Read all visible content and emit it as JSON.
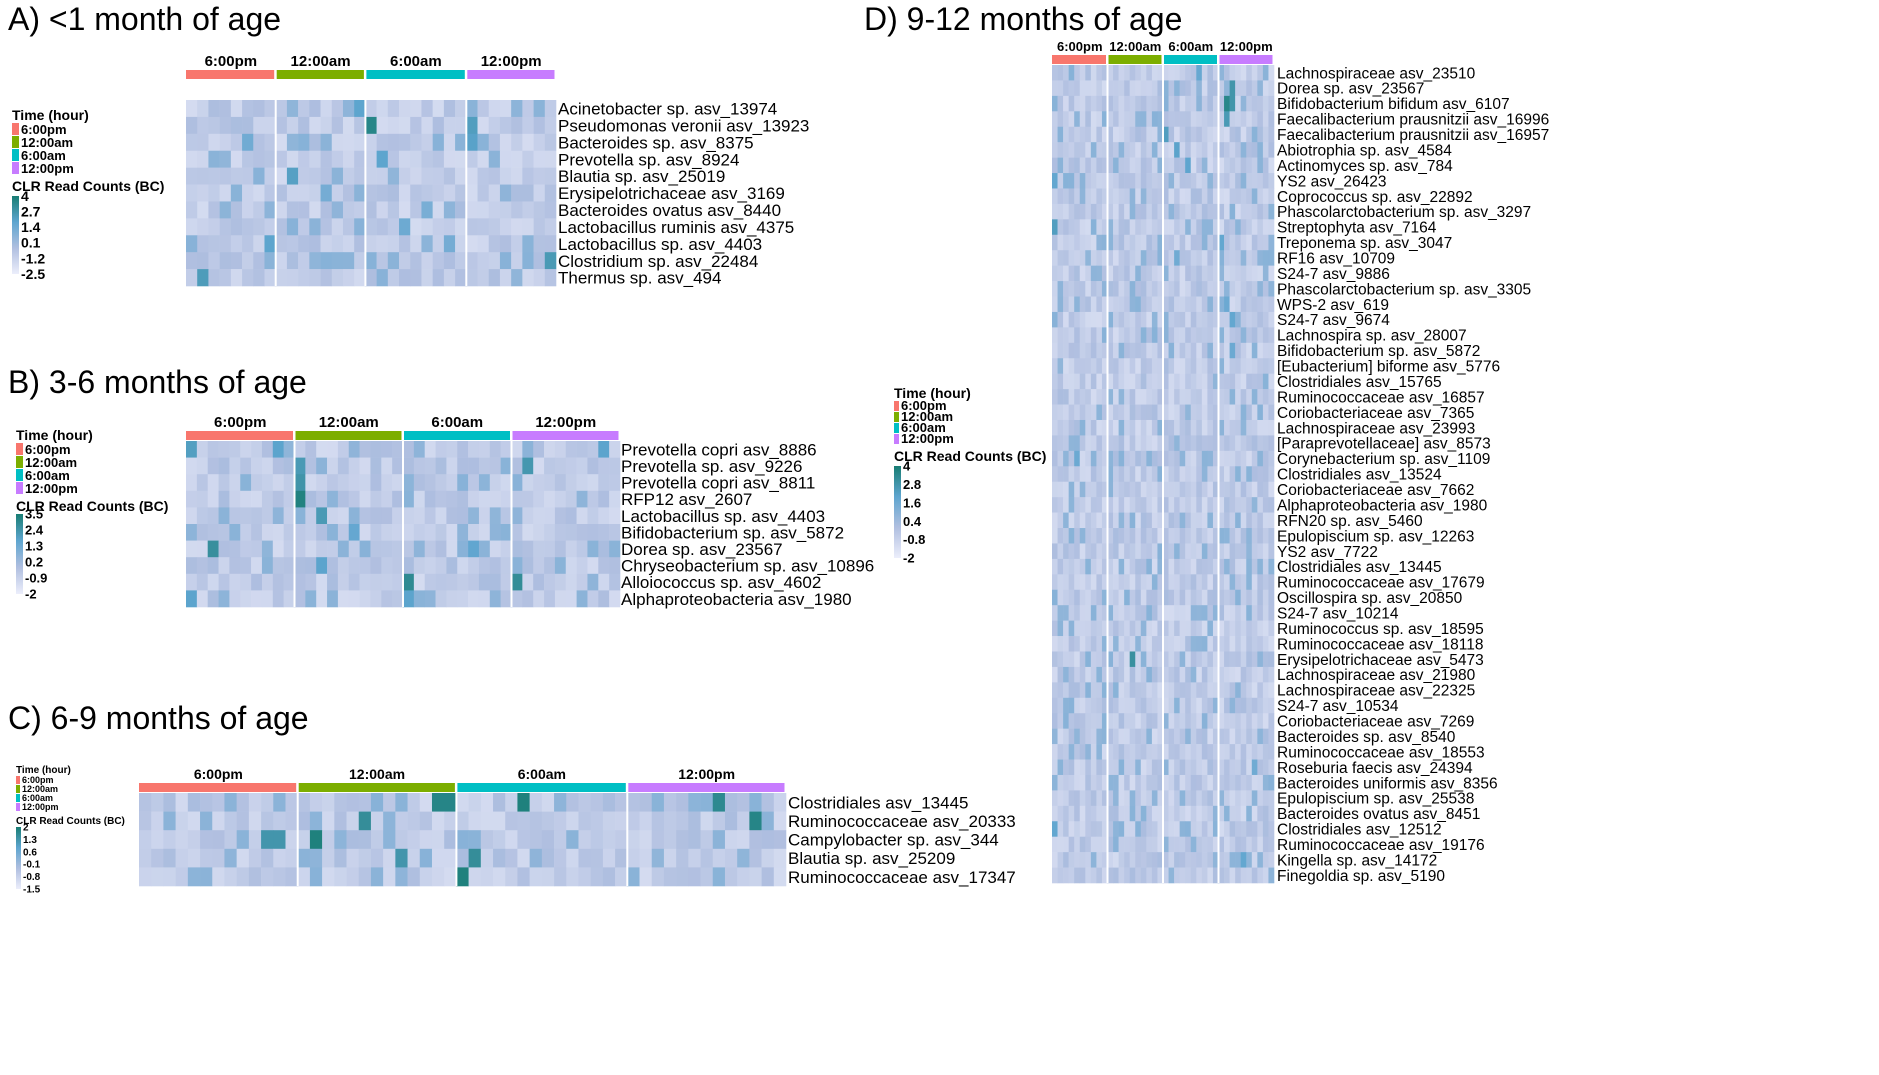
{
  "legend": {
    "time_title": "Time (hour)",
    "time_labels": [
      "6:00pm",
      "12:00am",
      "6:00am",
      "12:00pm"
    ],
    "clr_title": "CLR Read Counts (BC)"
  },
  "colors": {
    "time": [
      "#f8766d",
      "#7cae00",
      "#00bfc4",
      "#c77cff"
    ],
    "heat_low": "#eceefb",
    "heat_mid": "#b0bfe0",
    "heat_high": "#5ea5cf",
    "heat_top": "#187d74"
  },
  "chart_data": [
    {
      "type": "heatmap",
      "title": "A) <1 month of age",
      "groups": [
        "6:00pm",
        "12:00am",
        "6:00am",
        "12:00pm"
      ],
      "columns_per_group": [
        8,
        8,
        9,
        8
      ],
      "legend_ticks": [
        "4",
        "2.7",
        "1.4",
        "0.1",
        "-1.2",
        "-2.5"
      ],
      "color_range": [
        -2.5,
        4
      ],
      "rows": [
        "Acinetobacter sp. asv_13974",
        "Pseudomonas veronii asv_13923",
        "Bacteroides sp. asv_8375",
        "Prevotella sp. asv_8924",
        "Blautia sp. asv_25019",
        "Erysipelotrichaceae asv_3169",
        "Bacteroides ovatus asv_8440",
        "Lactobacillus ruminis asv_4375",
        "Lactobacillus sp. asv_4403",
        "Clostridium sp. asv_22484",
        "Thermus sp. asv_494"
      ],
      "highlights": [
        [
          1,
          16,
          3.6
        ],
        [
          1,
          25,
          2.5
        ],
        [
          2,
          25,
          2.3
        ],
        [
          4,
          9,
          2.4
        ],
        [
          3,
          17,
          2.2
        ],
        [
          0,
          15,
          2.2
        ],
        [
          8,
          7,
          2.2
        ],
        [
          9,
          32,
          2.7
        ],
        [
          10,
          1,
          2.6
        ],
        [
          7,
          19,
          1.8
        ],
        [
          2,
          5,
          1.7
        ],
        [
          5,
          12,
          1.6
        ],
        [
          6,
          21,
          1.5
        ],
        [
          8,
          23,
          1.6
        ]
      ]
    },
    {
      "type": "heatmap",
      "title": "B) 3-6 months of age",
      "groups": [
        "6:00pm",
        "12:00am",
        "6:00am",
        "12:00pm"
      ],
      "columns_per_group": [
        10,
        10,
        10,
        10
      ],
      "legend_ticks": [
        "3.5",
        "2.4",
        "1.3",
        "0.2",
        "-0.9",
        "-2"
      ],
      "color_range": [
        -2,
        3.5
      ],
      "rows": [
        "Prevotella copri asv_8886",
        "Prevotella sp. asv_9226",
        "Prevotella copri asv_8811",
        "RFP12 asv_2607",
        "Lactobacillus sp. asv_4403",
        "Bifidobacterium sp. asv_5872",
        "Dorea sp. asv_23567",
        "Chryseobacterium sp. asv_10896",
        "Alloiococcus sp. asv_4602",
        "Alphaproteobacteria asv_1980"
      ],
      "highlights": [
        [
          0,
          0,
          2.2
        ],
        [
          0,
          8,
          2.0
        ],
        [
          0,
          38,
          2.0
        ],
        [
          1,
          10,
          2.4
        ],
        [
          1,
          31,
          2.5
        ],
        [
          2,
          10,
          2.6
        ],
        [
          3,
          10,
          3.3
        ],
        [
          4,
          12,
          2.4
        ],
        [
          6,
          2,
          2.8
        ],
        [
          6,
          26,
          1.9
        ],
        [
          7,
          12,
          2.0
        ],
        [
          8,
          20,
          3.0
        ],
        [
          8,
          30,
          2.9
        ],
        [
          9,
          0,
          2.0
        ],
        [
          9,
          20,
          2.0
        ],
        [
          5,
          15,
          1.8
        ]
      ]
    },
    {
      "type": "heatmap",
      "title": "C) 6-9 months of age",
      "groups": [
        "6:00pm",
        "12:00am",
        "6:00am",
        "12:00pm"
      ],
      "columns_per_group": [
        13,
        13,
        14,
        13
      ],
      "legend_ticks": [
        "2",
        "1.3",
        "0.6",
        "-0.1",
        "-0.8",
        "-1.5"
      ],
      "color_range": [
        -1.5,
        2
      ],
      "rows": [
        "Clostridiales asv_13445",
        "Ruminococcaceae asv_20333",
        "Campylobacter sp. asv_344",
        "Blautia sp. asv_25209",
        "Ruminococcaceae asv_17347"
      ],
      "highlights": [
        [
          0,
          24,
          1.8
        ],
        [
          0,
          25,
          1.8
        ],
        [
          0,
          31,
          1.9
        ],
        [
          0,
          47,
          1.7
        ],
        [
          1,
          50,
          1.8
        ],
        [
          1,
          18,
          1.6
        ],
        [
          2,
          14,
          1.9
        ],
        [
          2,
          10,
          1.4
        ],
        [
          2,
          11,
          1.4
        ],
        [
          3,
          21,
          1.4
        ],
        [
          4,
          26,
          1.9
        ],
        [
          3,
          27,
          1.6
        ]
      ]
    },
    {
      "type": "heatmap",
      "title": "D) 9-12 months of age",
      "groups": [
        "6:00pm",
        "12:00am",
        "6:00am",
        "12:00pm"
      ],
      "columns_per_group": [
        10,
        10,
        10,
        10
      ],
      "legend_ticks": [
        "4",
        "2.8",
        "1.6",
        "0.4",
        "-0.8",
        "-2"
      ],
      "color_range": [
        -2,
        4
      ],
      "rows": [
        "Lachnospiraceae asv_23510",
        "Dorea sp. asv_23567",
        "Bifidobacterium bifidum asv_6107",
        "Faecalibacterium prausnitzii asv_16996",
        "Faecalibacterium prausnitzii asv_16957",
        "Abiotrophia sp. asv_4584",
        "Actinomyces sp. asv_784",
        "YS2 asv_26423",
        "Coprococcus sp. asv_22892",
        "Phascolarctobacterium sp. asv_3297",
        "Streptophyta asv_7164",
        "Treponema sp. asv_3047",
        "RF16 asv_10709",
        "S24-7 asv_9886",
        "Phascolarctobacterium sp. asv_3305",
        "WPS-2 asv_619",
        "S24-7 asv_9674",
        "Lachnospira sp. asv_28007",
        "Bifidobacterium sp. asv_5872",
        "[Eubacterium] biforme asv_5776",
        "Clostridiales asv_15765",
        "Ruminococcaceae asv_16857",
        "Coriobacteriaceae asv_7365",
        "Lachnospiraceae asv_23993",
        "[Paraprevotellaceae] asv_8573",
        "Corynebacterium sp. asv_1109",
        "Clostridiales asv_13524",
        "Coriobacteriaceae asv_7662",
        "Alphaproteobacteria asv_1980",
        "RFN20 sp. asv_5460",
        "Epulopiscium sp. asv_12263",
        "YS2 asv_7722",
        "Clostridiales asv_13445",
        "Ruminococcaceae asv_17679",
        "Oscillospira sp. asv_20850",
        "S24-7 asv_10214",
        "Ruminococcus sp. asv_18595",
        "Ruminococcaceae asv_18118",
        "Erysipelotrichaceae asv_5473",
        "Lachnospiraceae asv_21980",
        "Lachnospiraceae asv_22325",
        "S24-7 asv_10534",
        "Coriobacteriaceae asv_7269",
        "Bacteroides sp. asv_8540",
        "Ruminococcaceae asv_18553",
        "Roseburia faecis asv_24394",
        "Bacteroides uniformis asv_8356",
        "Epulopiscium sp. asv_25538",
        "Bacteroides ovatus asv_8451",
        "Clostridiales asv_12512",
        "Ruminococcaceae asv_19176",
        "Kingella sp. asv_14172",
        "Finegoldia sp. asv_5190"
      ],
      "highlights": [
        [
          1,
          32,
          3.0
        ],
        [
          2,
          31,
          3.6
        ],
        [
          2,
          32,
          3.0
        ],
        [
          3,
          31,
          2.8
        ],
        [
          4,
          20,
          2.6
        ],
        [
          5,
          22,
          2.4
        ],
        [
          6,
          24,
          2.3
        ],
        [
          7,
          0,
          2.2
        ],
        [
          10,
          0,
          2.6
        ],
        [
          11,
          30,
          2.2
        ],
        [
          15,
          31,
          2.0
        ],
        [
          16,
          32,
          2.2
        ],
        [
          18,
          32,
          2.0
        ],
        [
          38,
          14,
          3.2
        ],
        [
          49,
          0,
          2.2
        ],
        [
          51,
          34,
          2.2
        ],
        [
          0,
          26,
          2.1
        ],
        [
          12,
          22,
          1.9
        ],
        [
          25,
          4,
          2.0
        ],
        [
          45,
          36,
          1.9
        ]
      ]
    }
  ]
}
